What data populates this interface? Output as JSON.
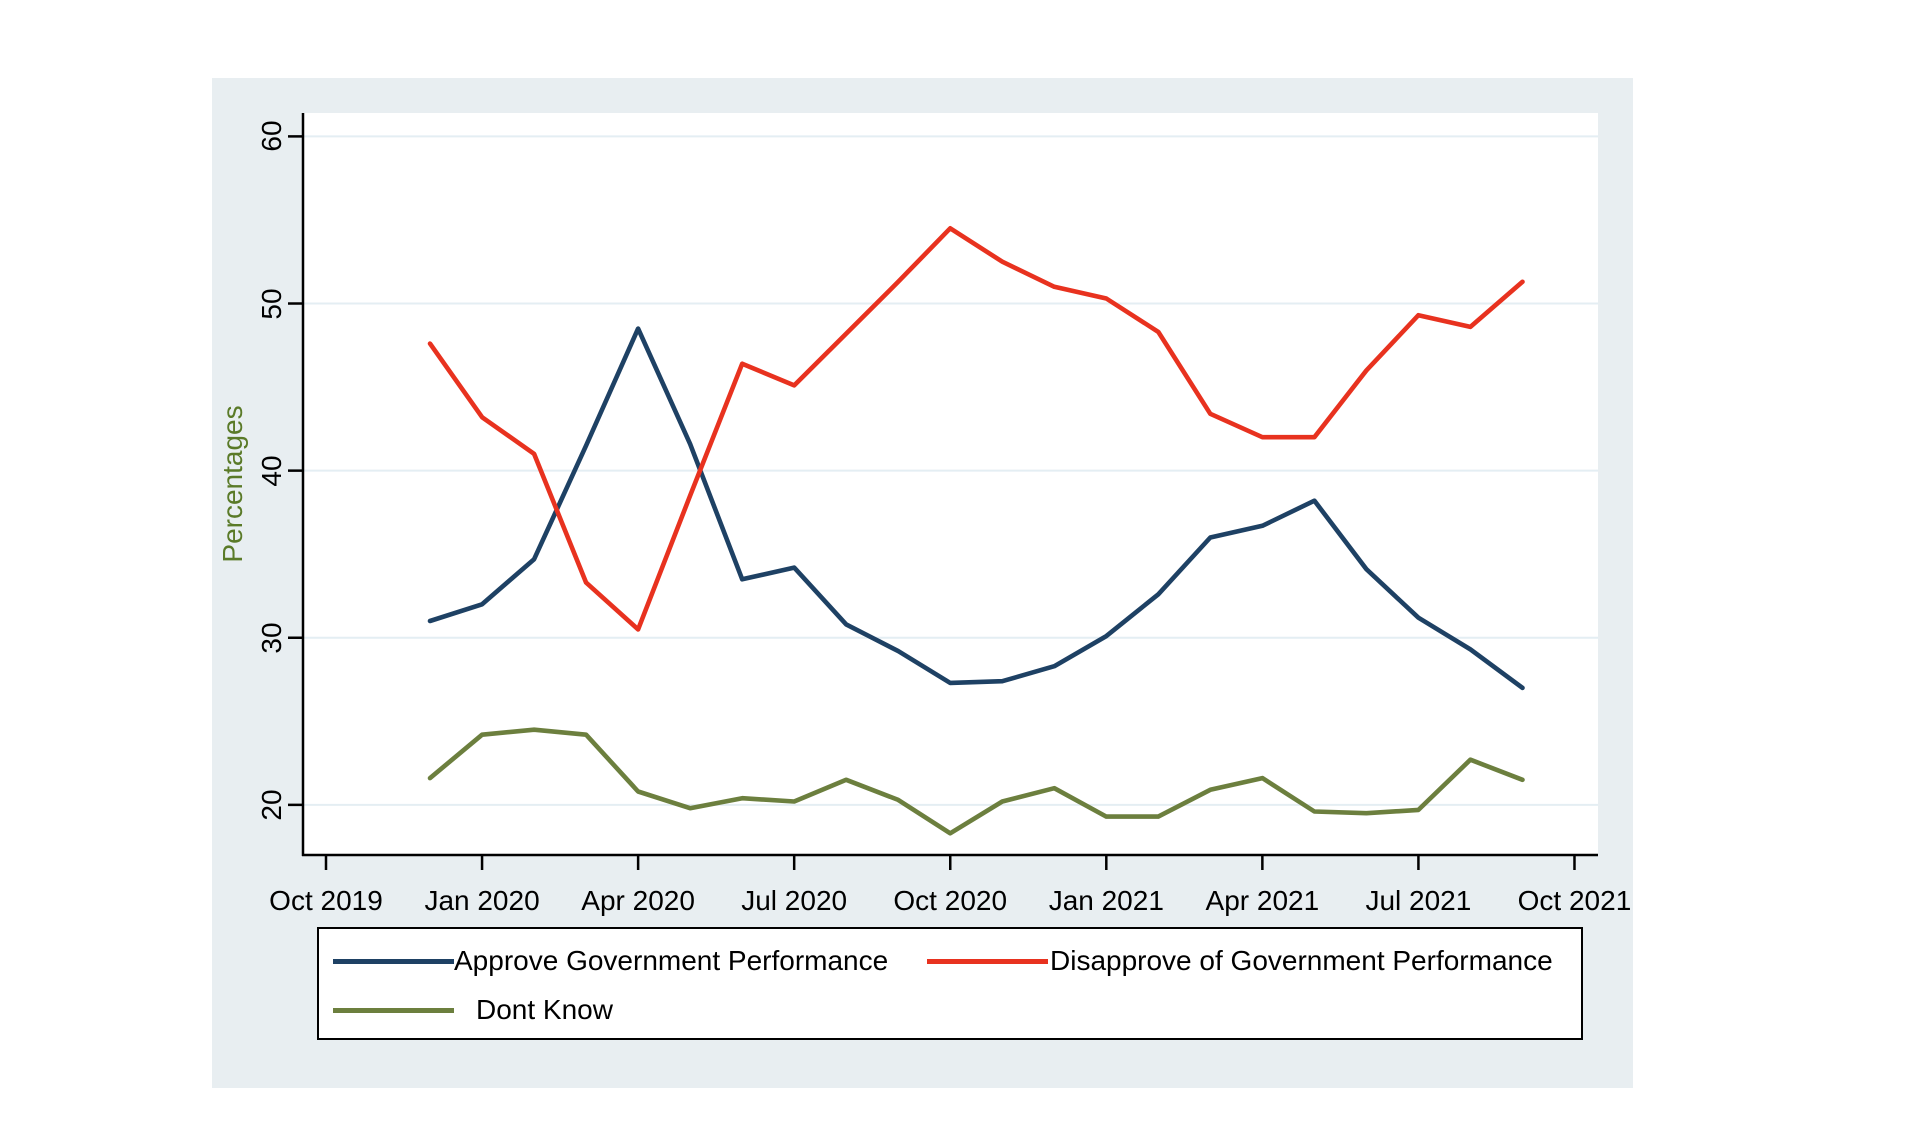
{
  "chart_data": {
    "type": "line",
    "title": "",
    "xlabel": "",
    "ylabel": "Percentages",
    "grid": true,
    "legend_position": "bottom",
    "ylim": [
      17,
      61.4
    ],
    "y_ticks": [
      20,
      30,
      40,
      50,
      60
    ],
    "x_tick_labels": [
      "Oct 2019",
      "Jan 2020",
      "Apr 2020",
      "Jul 2020",
      "Oct 2020",
      "Jan 2021",
      "Apr 2021",
      "Jul 2021",
      "Oct 2021"
    ],
    "x_tick_month_indices": [
      0,
      3,
      6,
      9,
      12,
      15,
      18,
      21,
      24
    ],
    "x_axis_months_span": 24,
    "data_start_month_index": 2,
    "x_categories": [
      "Dec 2019",
      "Jan 2020",
      "Feb 2020",
      "Mar 2020",
      "Apr 2020",
      "May 2020",
      "Jun 2020",
      "Jul 2020",
      "Aug 2020",
      "Sep 2020",
      "Oct 2020",
      "Nov 2020",
      "Dec 2020",
      "Jan 2021",
      "Feb 2021",
      "Mar 2021",
      "Apr 2021",
      "May 2021",
      "Jun 2021",
      "Jul 2021",
      "Aug 2021",
      "Sep 2021"
    ],
    "series": [
      {
        "name": "Approve Government Performance",
        "color": "#1e4164",
        "values": [
          31.0,
          32.0,
          34.7,
          41.5,
          48.5,
          41.6,
          33.5,
          34.2,
          30.8,
          29.2,
          27.3,
          27.4,
          28.3,
          30.1,
          32.6,
          36.0,
          36.7,
          38.2,
          34.1,
          31.2,
          29.3,
          27.0
        ]
      },
      {
        "name": "Disapprove of Government Performance",
        "color": "#e8321f",
        "values": [
          47.6,
          43.2,
          41.0,
          33.3,
          30.5,
          38.5,
          46.4,
          45.1,
          48.2,
          51.3,
          54.5,
          52.5,
          51.0,
          50.3,
          48.3,
          43.4,
          42.0,
          42.0,
          46.0,
          49.3,
          48.6,
          51.3
        ]
      },
      {
        "name": "Dont Know",
        "color": "#6c7f3e",
        "values": [
          21.6,
          24.2,
          24.5,
          24.2,
          20.8,
          19.8,
          20.4,
          20.2,
          21.5,
          20.3,
          18.3,
          20.2,
          21.0,
          19.3,
          19.3,
          20.9,
          21.6,
          19.6,
          19.5,
          19.7,
          22.7,
          21.5
        ]
      }
    ],
    "colors": {
      "background": "#e8eef1",
      "plot_background": "#ffffff",
      "grid": "#e4eef3",
      "axis": "#000000",
      "ylabel_color": "#5a7a28",
      "tick_label_color": "#000000"
    }
  }
}
